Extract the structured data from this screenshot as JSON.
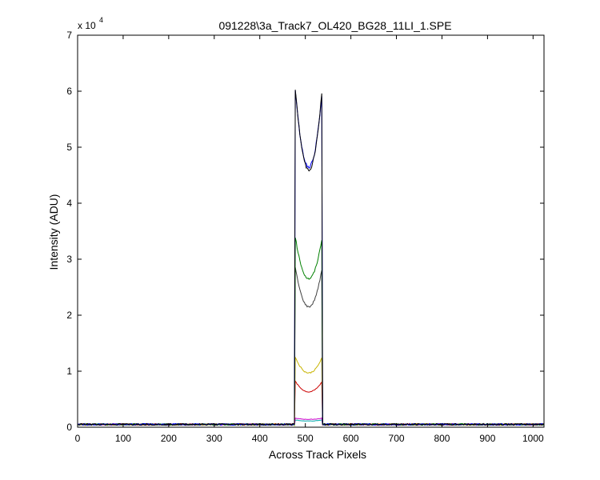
{
  "chart_data": {
    "type": "line",
    "title": "091228\\3a_Track7_OL420_BG28_11LI_1.SPE",
    "xlabel": "Across Track Pixels",
    "ylabel": "Intensity (ADU)",
    "xlim": [
      0,
      1024
    ],
    "ylim": [
      0,
      70000
    ],
    "x_ticks": [
      "0",
      "100",
      "200",
      "300",
      "400",
      "500",
      "600",
      "700",
      "800",
      "900",
      "1000"
    ],
    "y_ticks": [
      "0",
      "1",
      "2",
      "3",
      "4",
      "5",
      "6",
      "7"
    ],
    "y_exponent_base": "x 10",
    "y_exponent_power": "4",
    "grid": false,
    "legend": "none",
    "signal_window": [
      478,
      537
    ],
    "baseline": 500,
    "series": [
      {
        "color": "#000000",
        "edge": 60500,
        "center": 46000,
        "noise": 600
      },
      {
        "color": "#0000ff",
        "edge": 60000,
        "center": 46500,
        "noise": 500
      },
      {
        "color": "#008000",
        "edge": 34000,
        "center": 26500,
        "noise": 350
      },
      {
        "color": "#404040",
        "edge": 28500,
        "center": 21500,
        "noise": 300
      },
      {
        "color": "#c8b400",
        "edge": 12500,
        "center": 9700,
        "noise": 200
      },
      {
        "color": "#cc0000",
        "edge": 8200,
        "center": 6300,
        "noise": 150
      },
      {
        "color": "#cc00cc",
        "edge": 1600,
        "center": 1400,
        "noise": 80
      },
      {
        "color": "#00aaaa",
        "edge": 1300,
        "center": 1100,
        "noise": 60
      }
    ]
  }
}
